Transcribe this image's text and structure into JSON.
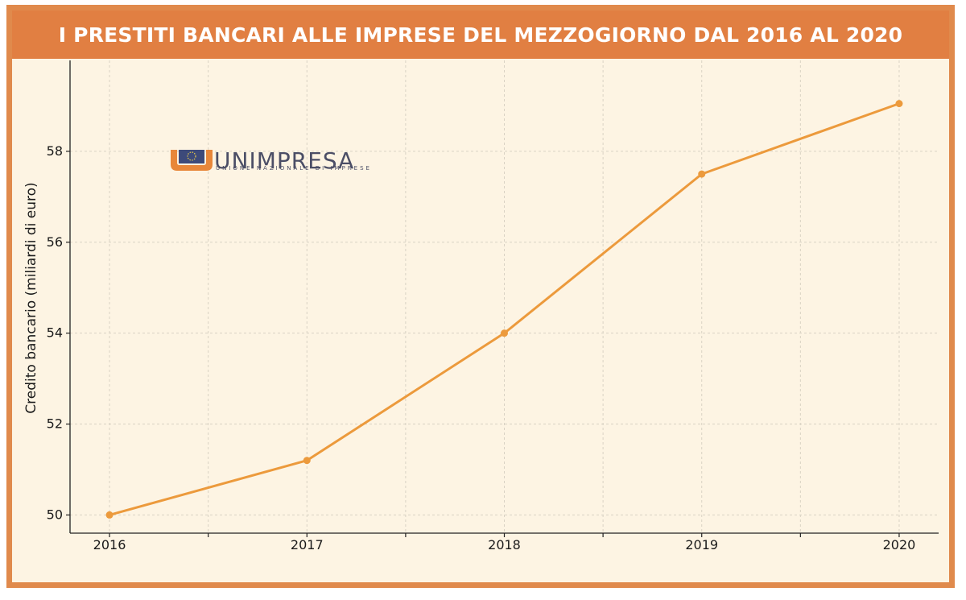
{
  "title": "I PRESTITI BANCARI ALLE IMPRESE DEL MEZZOGIORNO DAL 2016 AL 2020",
  "logo": {
    "name": "UNIMPRESA",
    "subtitle": "UNIONE NAZIONALE DI IMPRESE"
  },
  "colors": {
    "accent": "#e17f42",
    "line": "#ec9a3c",
    "background": "#fdf4e3",
    "logo_text": "#4b4e66"
  },
  "chart_data": {
    "type": "line",
    "title": "I PRESTITI BANCARI ALLE IMPRESE DEL MEZZOGIORNO DAL 2016 AL 2020",
    "xlabel": "",
    "ylabel": "Credito bancario (miliardi di euro)",
    "x": [
      2016,
      2017,
      2018,
      2019,
      2020
    ],
    "x_tick_labels": [
      "2016",
      "2017",
      "2018",
      "2019",
      "2020"
    ],
    "series": [
      {
        "values": [
          50.0,
          51.2,
          54.0,
          57.5,
          59.05
        ]
      }
    ],
    "y_ticks": [
      50,
      52,
      54,
      56,
      58
    ],
    "xlim": [
      2015.8,
      2020.2
    ],
    "ylim": [
      49.6,
      60.0
    ],
    "grid": true,
    "markers": true
  }
}
